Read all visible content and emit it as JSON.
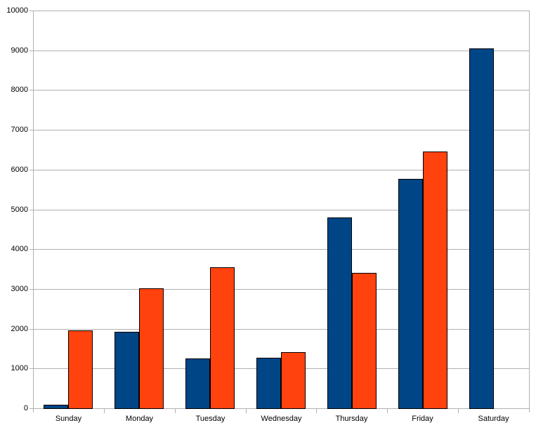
{
  "chart_data": {
    "type": "bar",
    "title": "",
    "xlabel": "",
    "ylabel": "",
    "categories": [
      "Sunday",
      "Monday",
      "Tuesday",
      "Wednesday",
      "Thursday",
      "Friday",
      "Saturday"
    ],
    "series": [
      {
        "name": "series-blue",
        "color": "#004586",
        "values": [
          100,
          1940,
          1270,
          1290,
          4820,
          5780,
          9060
        ]
      },
      {
        "name": "series-orange",
        "color": "#FF420E",
        "values": [
          1980,
          3040,
          3570,
          1430,
          3430,
          6470,
          null
        ]
      }
    ],
    "ylim": [
      0,
      10000
    ],
    "ytick_interval": 1000,
    "ytick_labels": [
      "0",
      "1000",
      "2000",
      "3000",
      "4000",
      "5000",
      "6000",
      "7000",
      "8000",
      "9000",
      "10000"
    ],
    "grid": true,
    "legend_position": "none",
    "bar_border_color": "#000000",
    "gridline_color": "#b1b1b1",
    "axis_color": "#b1b1b1",
    "label_color": "#000000"
  }
}
